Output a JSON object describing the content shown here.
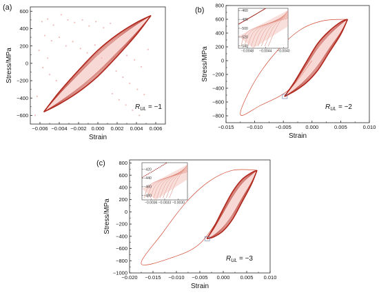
{
  "figure": {
    "panels": [
      {
        "label": "(a)",
        "annotation_main": "R",
        "annotation_sub": "UL",
        "annotation_value": " = −1"
      },
      {
        "label": "(b)",
        "annotation_main": "R",
        "annotation_sub": "UL",
        "annotation_value": " = −2"
      },
      {
        "label": "(c)",
        "annotation_main": "R",
        "annotation_sub": "UL",
        "annotation_value": " = −3"
      }
    ]
  },
  "chart_data": [
    {
      "type": "line",
      "panel": "(a)",
      "xlabel": "Strain",
      "ylabel": "Stress/MPa",
      "xlim": [
        -0.007,
        0.007
      ],
      "ylim": [
        -700,
        650
      ],
      "xticks": [
        -0.006,
        -0.004,
        -0.002,
        0.0,
        0.002,
        0.004,
        0.006
      ],
      "xtick_labels": [
        "−0.006",
        "−0.004",
        "−0.002",
        "0.000",
        "0.002",
        "0.004",
        "0.006"
      ],
      "yticks": [
        -600,
        -400,
        -200,
        0,
        200,
        400,
        600
      ],
      "ytick_labels": [
        "−600",
        "−400",
        "−200",
        "0",
        "200",
        "400",
        "600"
      ],
      "grid": false,
      "colors": {
        "loop": "#b0281e",
        "fill": "#f2b8b0",
        "scatter": "#e8a0a0"
      },
      "loops": [
        {
          "upper": [
            [
              -0.0056,
              -560
            ],
            [
              -0.004,
              -330
            ],
            [
              -0.002,
              -80
            ],
            [
              0.0,
              150
            ],
            [
              0.002,
              330
            ],
            [
              0.004,
              470
            ],
            [
              0.0055,
              550
            ]
          ],
          "lower": [
            [
              0.0055,
              550
            ],
            [
              0.004,
              330
            ],
            [
              0.002,
              80
            ],
            [
              0.0,
              -150
            ],
            [
              -0.002,
              -330
            ],
            [
              -0.004,
              -470
            ],
            [
              -0.0056,
              -560
            ]
          ]
        }
      ],
      "scatter_points": [
        [
          -0.0058,
          480
        ],
        [
          -0.0052,
          510
        ],
        [
          -0.0046,
          440
        ],
        [
          -0.0038,
          560
        ],
        [
          -0.0031,
          500
        ],
        [
          -0.0024,
          470
        ],
        [
          -0.0016,
          500
        ],
        [
          -0.0009,
          430
        ],
        [
          -0.0002,
          480
        ],
        [
          0.0006,
          410
        ],
        [
          0.0013,
          460
        ],
        [
          -0.0055,
          320
        ],
        [
          -0.0048,
          260
        ],
        [
          -0.004,
          300
        ],
        [
          -0.0033,
          200
        ],
        [
          -0.0026,
          250
        ],
        [
          -0.0018,
          170
        ],
        [
          -0.0011,
          120
        ],
        [
          -0.0003,
          210
        ],
        [
          0.0004,
          60
        ],
        [
          0.0011,
          -20
        ],
        [
          0.0019,
          -90
        ],
        [
          0.0026,
          -160
        ],
        [
          0.0033,
          -230
        ],
        [
          0.0041,
          -300
        ],
        [
          0.0048,
          -360
        ],
        [
          -0.0057,
          -50
        ],
        [
          -0.005,
          -130
        ],
        [
          -0.0043,
          -200
        ],
        [
          0.0022,
          -420
        ],
        [
          0.0029,
          -480
        ],
        [
          0.0036,
          -540
        ],
        [
          0.0043,
          -600
        ],
        [
          -0.0052,
          60
        ],
        [
          0.0015,
          -350
        ],
        [
          0.003,
          90
        ],
        [
          0.0038,
          40
        ],
        [
          0.0045,
          -40
        ],
        [
          0.0052,
          160
        ],
        [
          -0.0061,
          150
        ],
        [
          -0.0063,
          -380
        ],
        [
          -0.0065,
          -600
        ]
      ]
    },
    {
      "type": "line",
      "panel": "(b)",
      "xlabel": "Strain",
      "ylabel": "Stress/MPa",
      "xlim": [
        -0.015,
        0.01
      ],
      "ylim": [
        -900,
        800
      ],
      "xticks": [
        -0.015,
        -0.01,
        -0.005,
        0.0,
        0.005,
        0.01
      ],
      "xtick_labels": [
        "−0.015",
        "−0.010",
        "−0.005",
        "0.000",
        "0.005",
        "0.010"
      ],
      "yticks": [
        -800,
        -600,
        -400,
        -200,
        0,
        200,
        400,
        600,
        800
      ],
      "ytick_labels": [
        "−800",
        "−600",
        "−400",
        "−200",
        "0",
        "200",
        "400",
        "600",
        "800"
      ],
      "grid": false,
      "colors": {
        "loop": "#b0281e",
        "fill": "#f2b8b0",
        "first": "#d0452e"
      },
      "first_cycle": [
        [
          0.0,
          0
        ],
        [
          -0.004,
          -420
        ],
        [
          -0.009,
          -650
        ],
        [
          -0.0125,
          -780
        ],
        [
          -0.01,
          -300
        ],
        [
          -0.006,
          150
        ],
        [
          -0.002,
          450
        ],
        [
          0.002,
          580
        ],
        [
          0.0062,
          600
        ]
      ],
      "loops": [
        {
          "upper": [
            [
              -0.0048,
              -520
            ],
            [
              -0.003,
              -300
            ],
            [
              -0.001,
              -20
            ],
            [
              0.001,
              250
            ],
            [
              0.003,
              430
            ],
            [
              0.005,
              560
            ],
            [
              0.0062,
              600
            ]
          ],
          "lower": [
            [
              0.0062,
              600
            ],
            [
              0.005,
              380
            ],
            [
              0.003,
              120
            ],
            [
              0.001,
              -140
            ],
            [
              -0.001,
              -320
            ],
            [
              -0.003,
              -440
            ],
            [
              -0.0048,
              -520
            ]
          ]
        }
      ],
      "inset": {
        "xlim": [
          -0.005,
          -0.0039
        ],
        "ylim": [
          -545,
          -455
        ],
        "xticks": [
          -0.0048,
          -0.0044,
          -0.004
        ],
        "xtick_labels": [
          "−0.0048",
          "−0.0044",
          "−0.0040"
        ],
        "yticks": [
          -540,
          -520,
          -500,
          -480,
          -460
        ],
        "ytick_labels": [
          "−540",
          "−520",
          "−500",
          "−480",
          "−460"
        ]
      }
    },
    {
      "type": "line",
      "panel": "(c)",
      "xlabel": "Strain",
      "ylabel": "Stress/MPa",
      "xlim": [
        -0.02,
        0.01
      ],
      "ylim": [
        -1000,
        850
      ],
      "xticks": [
        -0.02,
        -0.015,
        -0.01,
        -0.005,
        0.0,
        0.005,
        0.01
      ],
      "xtick_labels": [
        "−0.020",
        "−0.015",
        "−0.010",
        "−0.005",
        "0.000",
        "0.005",
        "0.010"
      ],
      "yticks": [
        -1000,
        -800,
        -600,
        -400,
        -200,
        0,
        200,
        400,
        600,
        800
      ],
      "ytick_labels": [
        "−1000",
        "−800",
        "−600",
        "−400",
        "−200",
        "0",
        "200",
        "400",
        "600",
        "800"
      ],
      "grid": false,
      "colors": {
        "loop": "#b0281e",
        "fill": "#f2b8b0",
        "first": "#d0452e"
      },
      "first_cycle": [
        [
          0.0,
          0
        ],
        [
          -0.005,
          -520
        ],
        [
          -0.011,
          -750
        ],
        [
          -0.0175,
          -850
        ],
        [
          -0.013,
          -350
        ],
        [
          -0.008,
          150
        ],
        [
          -0.003,
          500
        ],
        [
          0.002,
          680
        ],
        [
          0.0072,
          680
        ]
      ],
      "loops": [
        {
          "upper": [
            [
              -0.0035,
              -440
            ],
            [
              -0.002,
              -250
            ],
            [
              0.0,
              50
            ],
            [
              0.002,
              330
            ],
            [
              0.004,
              530
            ],
            [
              0.006,
              640
            ],
            [
              0.0072,
              680
            ]
          ],
          "lower": [
            [
              0.0072,
              680
            ],
            [
              0.006,
              450
            ],
            [
              0.004,
              160
            ],
            [
              0.002,
              -120
            ],
            [
              0.0,
              -310
            ],
            [
              -0.002,
              -410
            ],
            [
              -0.0035,
              -440
            ]
          ]
        }
      ],
      "inset": {
        "xlim": [
          -0.0038,
          -0.0028
        ],
        "ylim": [
          -490,
          -405
        ],
        "xticks": [
          -0.0036,
          -0.0033,
          -0.003
        ],
        "xtick_labels": [
          "−0.0036",
          "−0.0033",
          "−0.0030"
        ],
        "yticks": [
          -480,
          -460,
          -440,
          -420
        ],
        "ytick_labels": [
          "−480",
          "−460",
          "−440",
          "−420"
        ]
      }
    }
  ]
}
